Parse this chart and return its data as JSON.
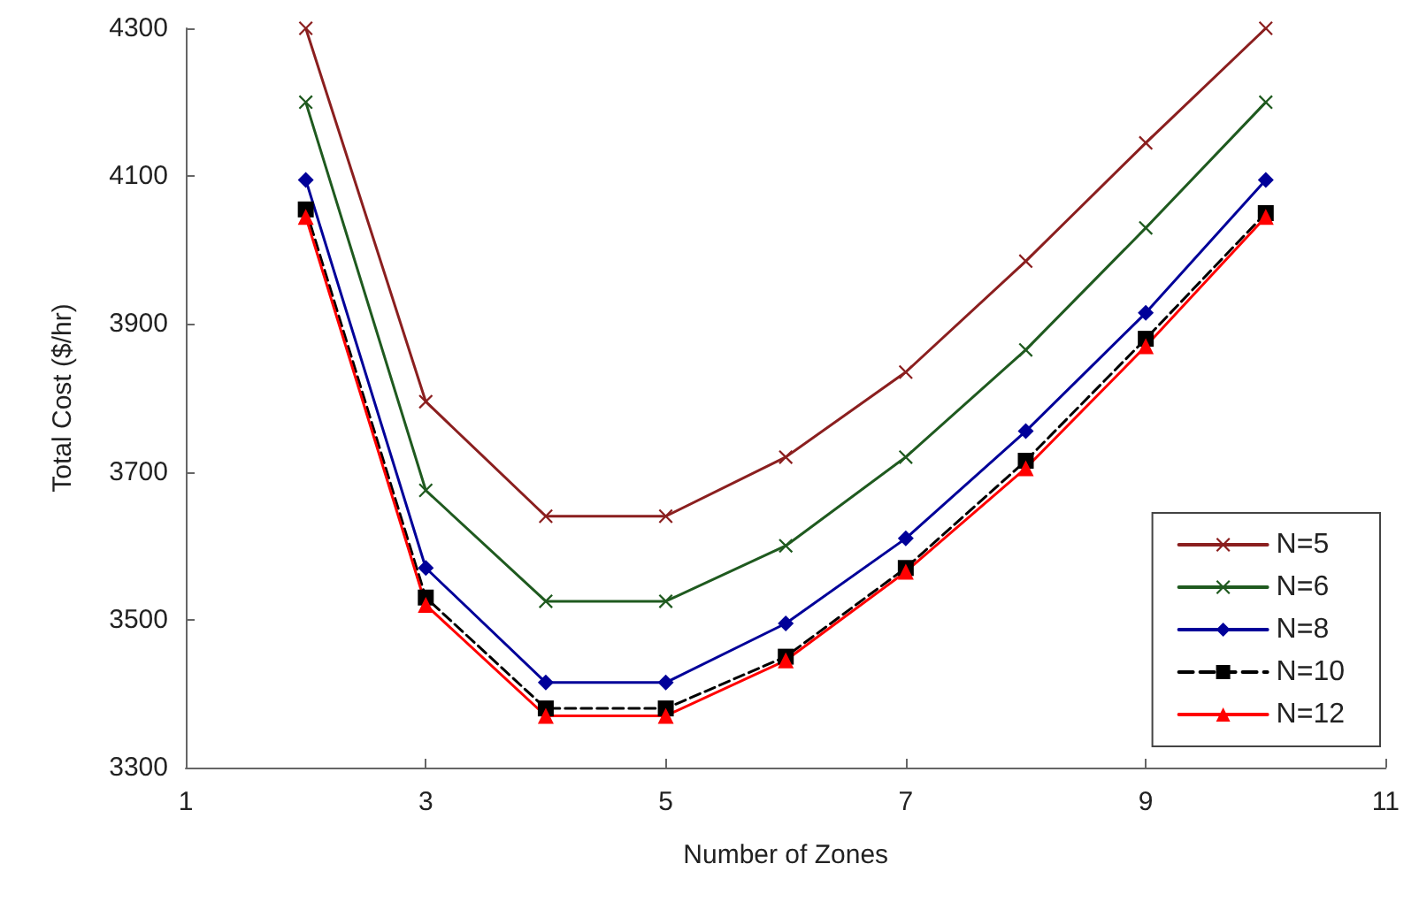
{
  "chart_data": {
    "type": "line",
    "xlabel": "Number of Zones",
    "ylabel": "Total Cost ($/hr)",
    "x": [
      2,
      3,
      4,
      5,
      6,
      7,
      8,
      9,
      10
    ],
    "xlim": [
      1,
      11
    ],
    "xticks": [
      1,
      3,
      5,
      7,
      9,
      11
    ],
    "ylim": [
      3300,
      4300
    ],
    "yticks": [
      3300,
      3500,
      3700,
      3900,
      4100,
      4300
    ],
    "grid": false,
    "legend": "bottom right",
    "series": [
      {
        "name": "N=5",
        "color": "#8b1f1f",
        "marker": "cross",
        "values": [
          4300,
          3795,
          3640,
          3640,
          3720,
          3835,
          3985,
          4145,
          4300
        ]
      },
      {
        "name": "N=6",
        "color": "#1f5a1f",
        "marker": "cross",
        "values": [
          4200,
          3675,
          3525,
          3525,
          3600,
          3720,
          3865,
          4030,
          4200
        ]
      },
      {
        "name": "N=8",
        "color": "#000099",
        "marker": "diamond",
        "values": [
          4095,
          3570,
          3415,
          3415,
          3495,
          3610,
          3755,
          3915,
          4095
        ]
      },
      {
        "name": "N=10",
        "color": "#000000",
        "marker": "square",
        "line_style": "dashed",
        "values": [
          4055,
          3530,
          3380,
          3380,
          3450,
          3570,
          3715,
          3880,
          4050
        ]
      },
      {
        "name": "N=12",
        "color": "#ff0000",
        "marker": "triangle",
        "values": [
          4045,
          3520,
          3370,
          3370,
          3445,
          3565,
          3705,
          3870,
          4045
        ]
      }
    ]
  }
}
